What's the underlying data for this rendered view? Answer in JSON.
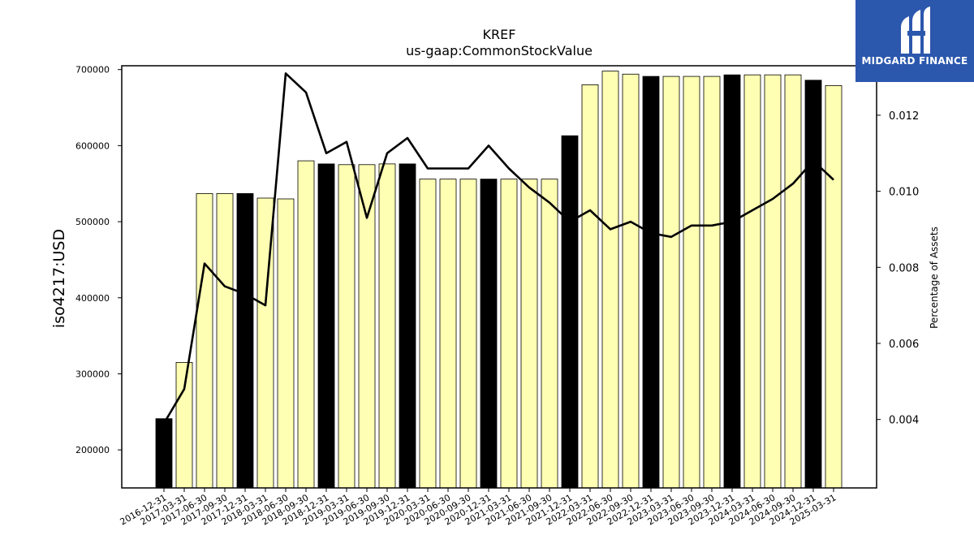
{
  "chart_data": {
    "type": "bar",
    "title": "KREF",
    "subtitle": "us-gaap:CommonStockValue",
    "ylabel": "iso4217:USD",
    "y2label": "Percentage of Assets",
    "categories": [
      "2016-12-31",
      "2017-03-31",
      "2017-06-30",
      "2017-09-30",
      "2017-12-31",
      "2018-03-31",
      "2018-06-30",
      "2018-09-30",
      "2018-12-31",
      "2019-03-31",
      "2019-06-30",
      "2019-09-30",
      "2019-12-31",
      "2020-03-31",
      "2020-06-30",
      "2020-09-30",
      "2020-12-31",
      "2021-03-31",
      "2021-06-30",
      "2021-09-30",
      "2021-12-31",
      "2022-03-31",
      "2022-06-30",
      "2022-09-30",
      "2022-12-31",
      "2023-03-31",
      "2023-06-30",
      "2023-09-30",
      "2023-12-31",
      "2024-03-31",
      "2024-06-30",
      "2024-09-30",
      "2024-12-31",
      "2025-03-31"
    ],
    "series": [
      {
        "type": "bar",
        "values": [
          241000,
          315000,
          537000,
          537000,
          537000,
          531000,
          530000,
          580000,
          576000,
          575000,
          575000,
          576000,
          576000,
          556000,
          556000,
          556000,
          556000,
          556000,
          556000,
          556000,
          613000,
          680000,
          698000,
          694000,
          691000,
          691000,
          691000,
          691000,
          693000,
          693000,
          693000,
          693000,
          686000,
          679000
        ]
      },
      {
        "type": "line",
        "values": [
          0.0039,
          0.0048,
          0.0081,
          0.0075,
          0.0073,
          0.007,
          0.0131,
          0.0126,
          0.011,
          0.0113,
          0.0093,
          0.011,
          0.0114,
          0.0106,
          0.0106,
          0.0106,
          0.0112,
          0.0106,
          0.0101,
          0.0097,
          0.0092,
          0.0095,
          0.009,
          0.0092,
          0.0089,
          0.0088,
          0.0091,
          0.0091,
          0.0092,
          0.0095,
          0.0098,
          0.0102,
          0.0108,
          0.0103
        ]
      }
    ],
    "bar_fill_normal": "#ffffb3",
    "bar_fill_year_end": "#000000",
    "line_color": "#000000",
    "ylim": [
      150000,
      705000
    ],
    "y_ticks": [
      200000,
      300000,
      400000,
      500000,
      600000,
      700000
    ],
    "y2lim": [
      0.0022,
      0.0133
    ],
    "y2_ticks": [
      "0.004",
      "0.006",
      "0.008",
      "0.010",
      "0.012"
    ],
    "grid": false,
    "legend": "none"
  },
  "logo": {
    "text": "MIDGARD FINANCE",
    "background": "#2b57ad"
  }
}
